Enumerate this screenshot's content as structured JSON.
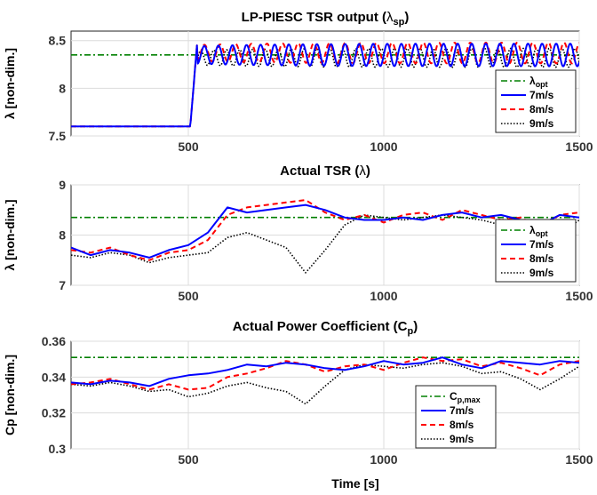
{
  "figure": {
    "xlabel": "Time [s]"
  },
  "colors": {
    "opt": "#008000",
    "s7": "#0000ff",
    "s8": "#ff0000",
    "s9": "#000000"
  },
  "chart_data": [
    {
      "type": "line",
      "title": "LP-PIESC TSR output (λsp)",
      "title_parts": {
        "main": "LP-PIESC TSR output (",
        "greek": "λ",
        "sub": "sp",
        "tail": ")"
      },
      "ylabel": "λ [non-dim.]",
      "xlim": [
        200,
        1500
      ],
      "ylim": [
        7.5,
        8.6
      ],
      "xticks": [
        500,
        1000,
        1500
      ],
      "xtick_labels": [
        "500",
        "1000",
        "1500"
      ],
      "yticks": [
        7.5,
        8,
        8.5
      ],
      "ytick_labels": [
        "7.5",
        "8",
        "8.5"
      ],
      "legend_position": "bottom-right",
      "legend": [
        {
          "key": "opt",
          "label": "λ",
          "sub": "opt"
        },
        {
          "key": "s7",
          "label": "7m/s"
        },
        {
          "key": "s8",
          "label": "8m/s"
        },
        {
          "key": "s9",
          "label": "9m/s"
        }
      ],
      "reference": {
        "name": "λopt",
        "value": 8.35
      },
      "step": {
        "t_step": 505,
        "before": 7.6,
        "after": 8.5
      },
      "series": [
        {
          "name": "7m/s",
          "mean": 8.35,
          "period": 36,
          "amp": 0.12,
          "phase": 0.0
        },
        {
          "name": "8m/s",
          "mean": 8.37,
          "period": 40,
          "amp": 0.11,
          "phase": 0.6
        },
        {
          "name": "9m/s",
          "mean": 8.32,
          "period": 33,
          "amp": 0.1,
          "phase": 1.1
        }
      ]
    },
    {
      "type": "line",
      "title": "Actual TSR (λ)",
      "title_parts": {
        "main": "Actual TSR (",
        "greek": "λ",
        "sub": "",
        "tail": ")"
      },
      "ylabel": "λ [non-dim.]",
      "xlim": [
        200,
        1500
      ],
      "ylim": [
        7,
        9
      ],
      "xticks": [
        500,
        1000,
        1500
      ],
      "xtick_labels": [
        "500",
        "1000",
        "1500"
      ],
      "yticks": [
        7,
        8,
        9
      ],
      "ytick_labels": [
        "7",
        "8",
        "9"
      ],
      "legend_position": "bottom-right",
      "legend": [
        {
          "key": "opt",
          "label": "λ",
          "sub": "opt"
        },
        {
          "key": "s7",
          "label": "7m/s"
        },
        {
          "key": "s8",
          "label": "8m/s"
        },
        {
          "key": "s9",
          "label": "9m/s"
        }
      ],
      "reference": {
        "name": "λopt",
        "value": 8.35
      },
      "series": [
        {
          "name": "7m/s",
          "x": [
            200,
            250,
            300,
            350,
            400,
            450,
            500,
            550,
            600,
            650,
            700,
            750,
            800,
            850,
            900,
            950,
            1000,
            1050,
            1100,
            1150,
            1200,
            1250,
            1300,
            1350,
            1400,
            1450,
            1500
          ],
          "y": [
            7.75,
            7.6,
            7.7,
            7.65,
            7.55,
            7.7,
            7.8,
            8.05,
            8.55,
            8.45,
            8.5,
            8.55,
            8.6,
            8.5,
            8.35,
            8.3,
            8.3,
            8.35,
            8.3,
            8.4,
            8.45,
            8.35,
            8.4,
            8.3,
            8.2,
            8.4,
            8.35
          ]
        },
        {
          "name": "8m/s",
          "x": [
            200,
            250,
            300,
            350,
            400,
            450,
            500,
            550,
            600,
            650,
            700,
            750,
            800,
            850,
            900,
            950,
            1000,
            1050,
            1100,
            1150,
            1200,
            1250,
            1300,
            1350,
            1400,
            1450,
            1500
          ],
          "y": [
            7.7,
            7.65,
            7.75,
            7.6,
            7.5,
            7.65,
            7.7,
            7.9,
            8.4,
            8.55,
            8.6,
            8.65,
            8.7,
            8.45,
            8.3,
            8.4,
            8.25,
            8.4,
            8.45,
            8.3,
            8.5,
            8.4,
            8.3,
            8.35,
            8.15,
            8.4,
            8.45
          ]
        },
        {
          "name": "9m/s",
          "x": [
            200,
            250,
            300,
            350,
            400,
            450,
            500,
            550,
            600,
            650,
            700,
            750,
            800,
            850,
            900,
            950,
            1000,
            1050,
            1100,
            1150,
            1200,
            1250,
            1300,
            1350,
            1400,
            1450,
            1500
          ],
          "y": [
            7.6,
            7.55,
            7.65,
            7.6,
            7.45,
            7.55,
            7.6,
            7.65,
            7.95,
            8.05,
            7.9,
            7.75,
            7.25,
            7.7,
            8.2,
            8.4,
            8.35,
            8.3,
            8.35,
            8.4,
            8.35,
            8.3,
            8.2,
            8.3,
            7.9,
            8.0,
            8.3
          ]
        }
      ]
    },
    {
      "type": "line",
      "title": "Actual Power Coefficient (Cp)",
      "title_parts": {
        "main": "Actual Power Coefficient (C",
        "greek": "",
        "sub": "p",
        "tail": ")"
      },
      "ylabel": "Cp [non-dim.]",
      "xlim": [
        200,
        1500
      ],
      "ylim": [
        0.3,
        0.36
      ],
      "xticks": [
        500,
        1000,
        1500
      ],
      "xtick_labels": [
        "500",
        "1000",
        "1500"
      ],
      "yticks": [
        0.3,
        0.32,
        0.34,
        0.36
      ],
      "ytick_labels": [
        "0.3",
        "0.32",
        "0.34",
        "0.36"
      ],
      "legend_position": "bottom-right",
      "legend": [
        {
          "key": "opt",
          "label": "C",
          "sub": "p,max"
        },
        {
          "key": "s7",
          "label": "7m/s"
        },
        {
          "key": "s8",
          "label": "8m/s"
        },
        {
          "key": "s9",
          "label": "9m/s"
        }
      ],
      "reference": {
        "name": "Cp,max",
        "value": 0.351
      },
      "series": [
        {
          "name": "7m/s",
          "x": [
            200,
            250,
            300,
            350,
            400,
            450,
            500,
            550,
            600,
            650,
            700,
            750,
            800,
            850,
            900,
            950,
            1000,
            1050,
            1100,
            1150,
            1200,
            1250,
            1300,
            1350,
            1400,
            1450,
            1500
          ],
          "y": [
            0.337,
            0.336,
            0.338,
            0.337,
            0.335,
            0.339,
            0.341,
            0.342,
            0.344,
            0.347,
            0.346,
            0.348,
            0.347,
            0.345,
            0.344,
            0.346,
            0.349,
            0.347,
            0.348,
            0.351,
            0.347,
            0.345,
            0.349,
            0.348,
            0.347,
            0.349,
            0.348
          ]
        },
        {
          "name": "8m/s",
          "x": [
            200,
            250,
            300,
            350,
            400,
            450,
            500,
            550,
            600,
            650,
            700,
            750,
            800,
            850,
            900,
            950,
            1000,
            1050,
            1100,
            1150,
            1200,
            1250,
            1300,
            1350,
            1400,
            1450,
            1500
          ],
          "y": [
            0.336,
            0.337,
            0.339,
            0.336,
            0.333,
            0.336,
            0.333,
            0.334,
            0.34,
            0.342,
            0.345,
            0.349,
            0.347,
            0.343,
            0.346,
            0.347,
            0.344,
            0.348,
            0.351,
            0.349,
            0.35,
            0.346,
            0.348,
            0.345,
            0.341,
            0.347,
            0.349
          ]
        },
        {
          "name": "9m/s",
          "x": [
            200,
            250,
            300,
            350,
            400,
            450,
            500,
            550,
            600,
            650,
            700,
            750,
            800,
            850,
            900,
            950,
            1000,
            1050,
            1100,
            1150,
            1200,
            1250,
            1300,
            1350,
            1400,
            1450,
            1500
          ],
          "y": [
            0.336,
            0.335,
            0.337,
            0.335,
            0.332,
            0.333,
            0.329,
            0.331,
            0.335,
            0.337,
            0.334,
            0.332,
            0.325,
            0.335,
            0.344,
            0.347,
            0.346,
            0.345,
            0.347,
            0.348,
            0.346,
            0.342,
            0.343,
            0.339,
            0.333,
            0.339,
            0.346
          ]
        }
      ]
    }
  ]
}
